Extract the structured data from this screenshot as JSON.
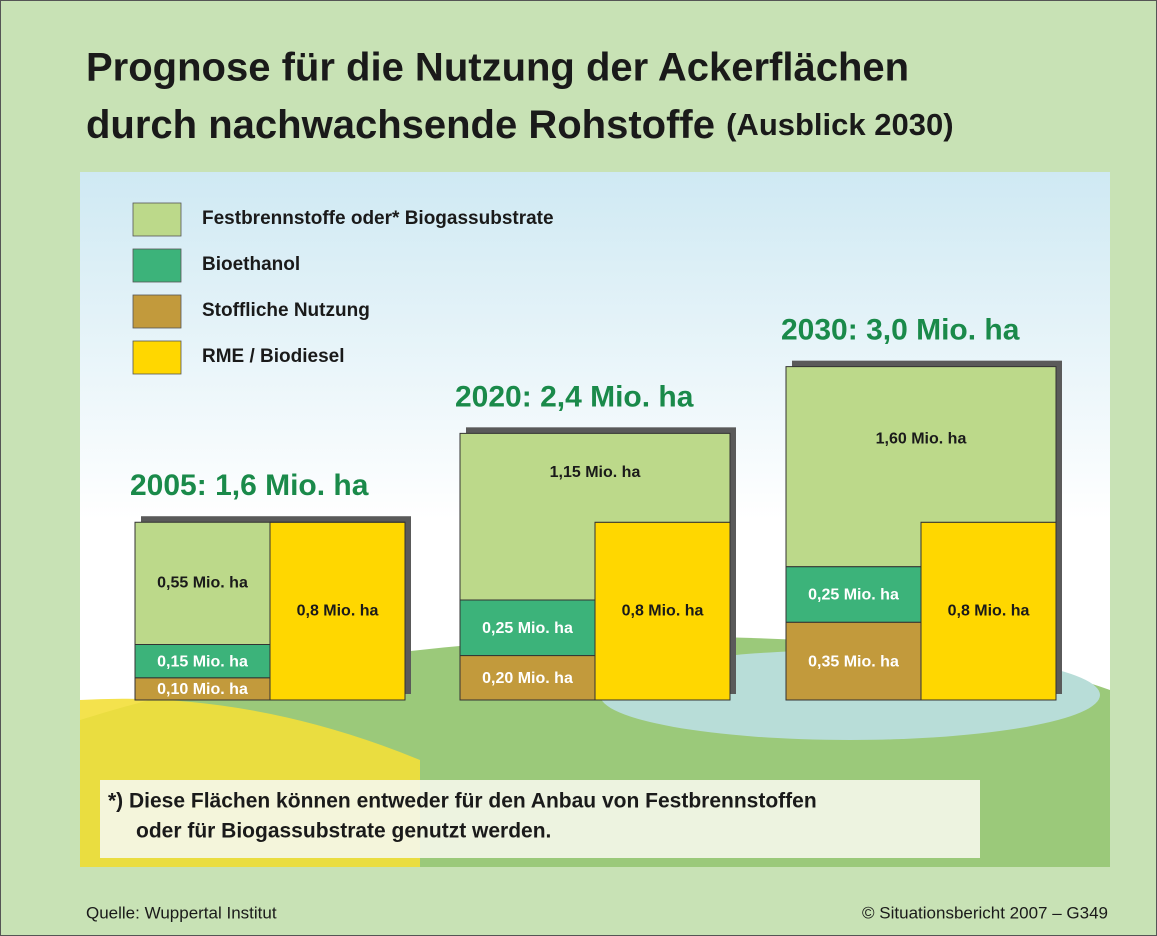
{
  "chart_data": {
    "type": "mosaic",
    "title_line1": "Prognose für die Nutzung der Ackerflächen",
    "title_line2": "durch nachwachsende Rohstoffe",
    "title_suffix": "(Ausblick 2030)",
    "groups": [
      "2005: 1,6 Mio. ha",
      "2020: 2,4 Mio. ha",
      "2030: 3,0 Mio. ha"
    ],
    "series": [
      {
        "name": "Festbrennstoffe oder* Biogassubstrate",
        "color": "#bcd98a",
        "label_color": "#1a1a1a",
        "values": [
          0.55,
          1.15,
          1.6
        ],
        "value_labels": [
          "0,55 Mio. ha",
          "1,15 Mio. ha",
          "1,60 Mio. ha"
        ]
      },
      {
        "name": "Bioethanol",
        "color": "#3cb37a",
        "label_color": "#ffffff",
        "values": [
          0.15,
          0.25,
          0.25
        ],
        "value_labels": [
          "0,15 Mio. ha",
          "0,25 Mio. ha",
          "0,25 Mio. ha"
        ]
      },
      {
        "name": "Stoffliche Nutzung",
        "color": "#c29a3c",
        "label_color": "#ffffff",
        "values": [
          0.1,
          0.2,
          0.35
        ],
        "value_labels": [
          "0,10 Mio. ha",
          "0,20 Mio. ha",
          "0,35 Mio. ha"
        ]
      },
      {
        "name": "RME / Biodiesel",
        "color": "#ffd700",
        "label_color": "#1a1a1a",
        "values": [
          0.8,
          0.8,
          0.8
        ],
        "value_labels": [
          "0,8 Mio. ha",
          "0,8 Mio. ha",
          "0,8 Mio. ha"
        ]
      }
    ],
    "footnote_line1": "*) Diese Flächen können entweder für den Anbau von Festbrennstoffen",
    "footnote_line2": "oder für Biogassubstrate genutzt werden.",
    "source": "Quelle: Wuppertal Institut",
    "copyright": "© Situationsbericht 2007 – G349"
  }
}
